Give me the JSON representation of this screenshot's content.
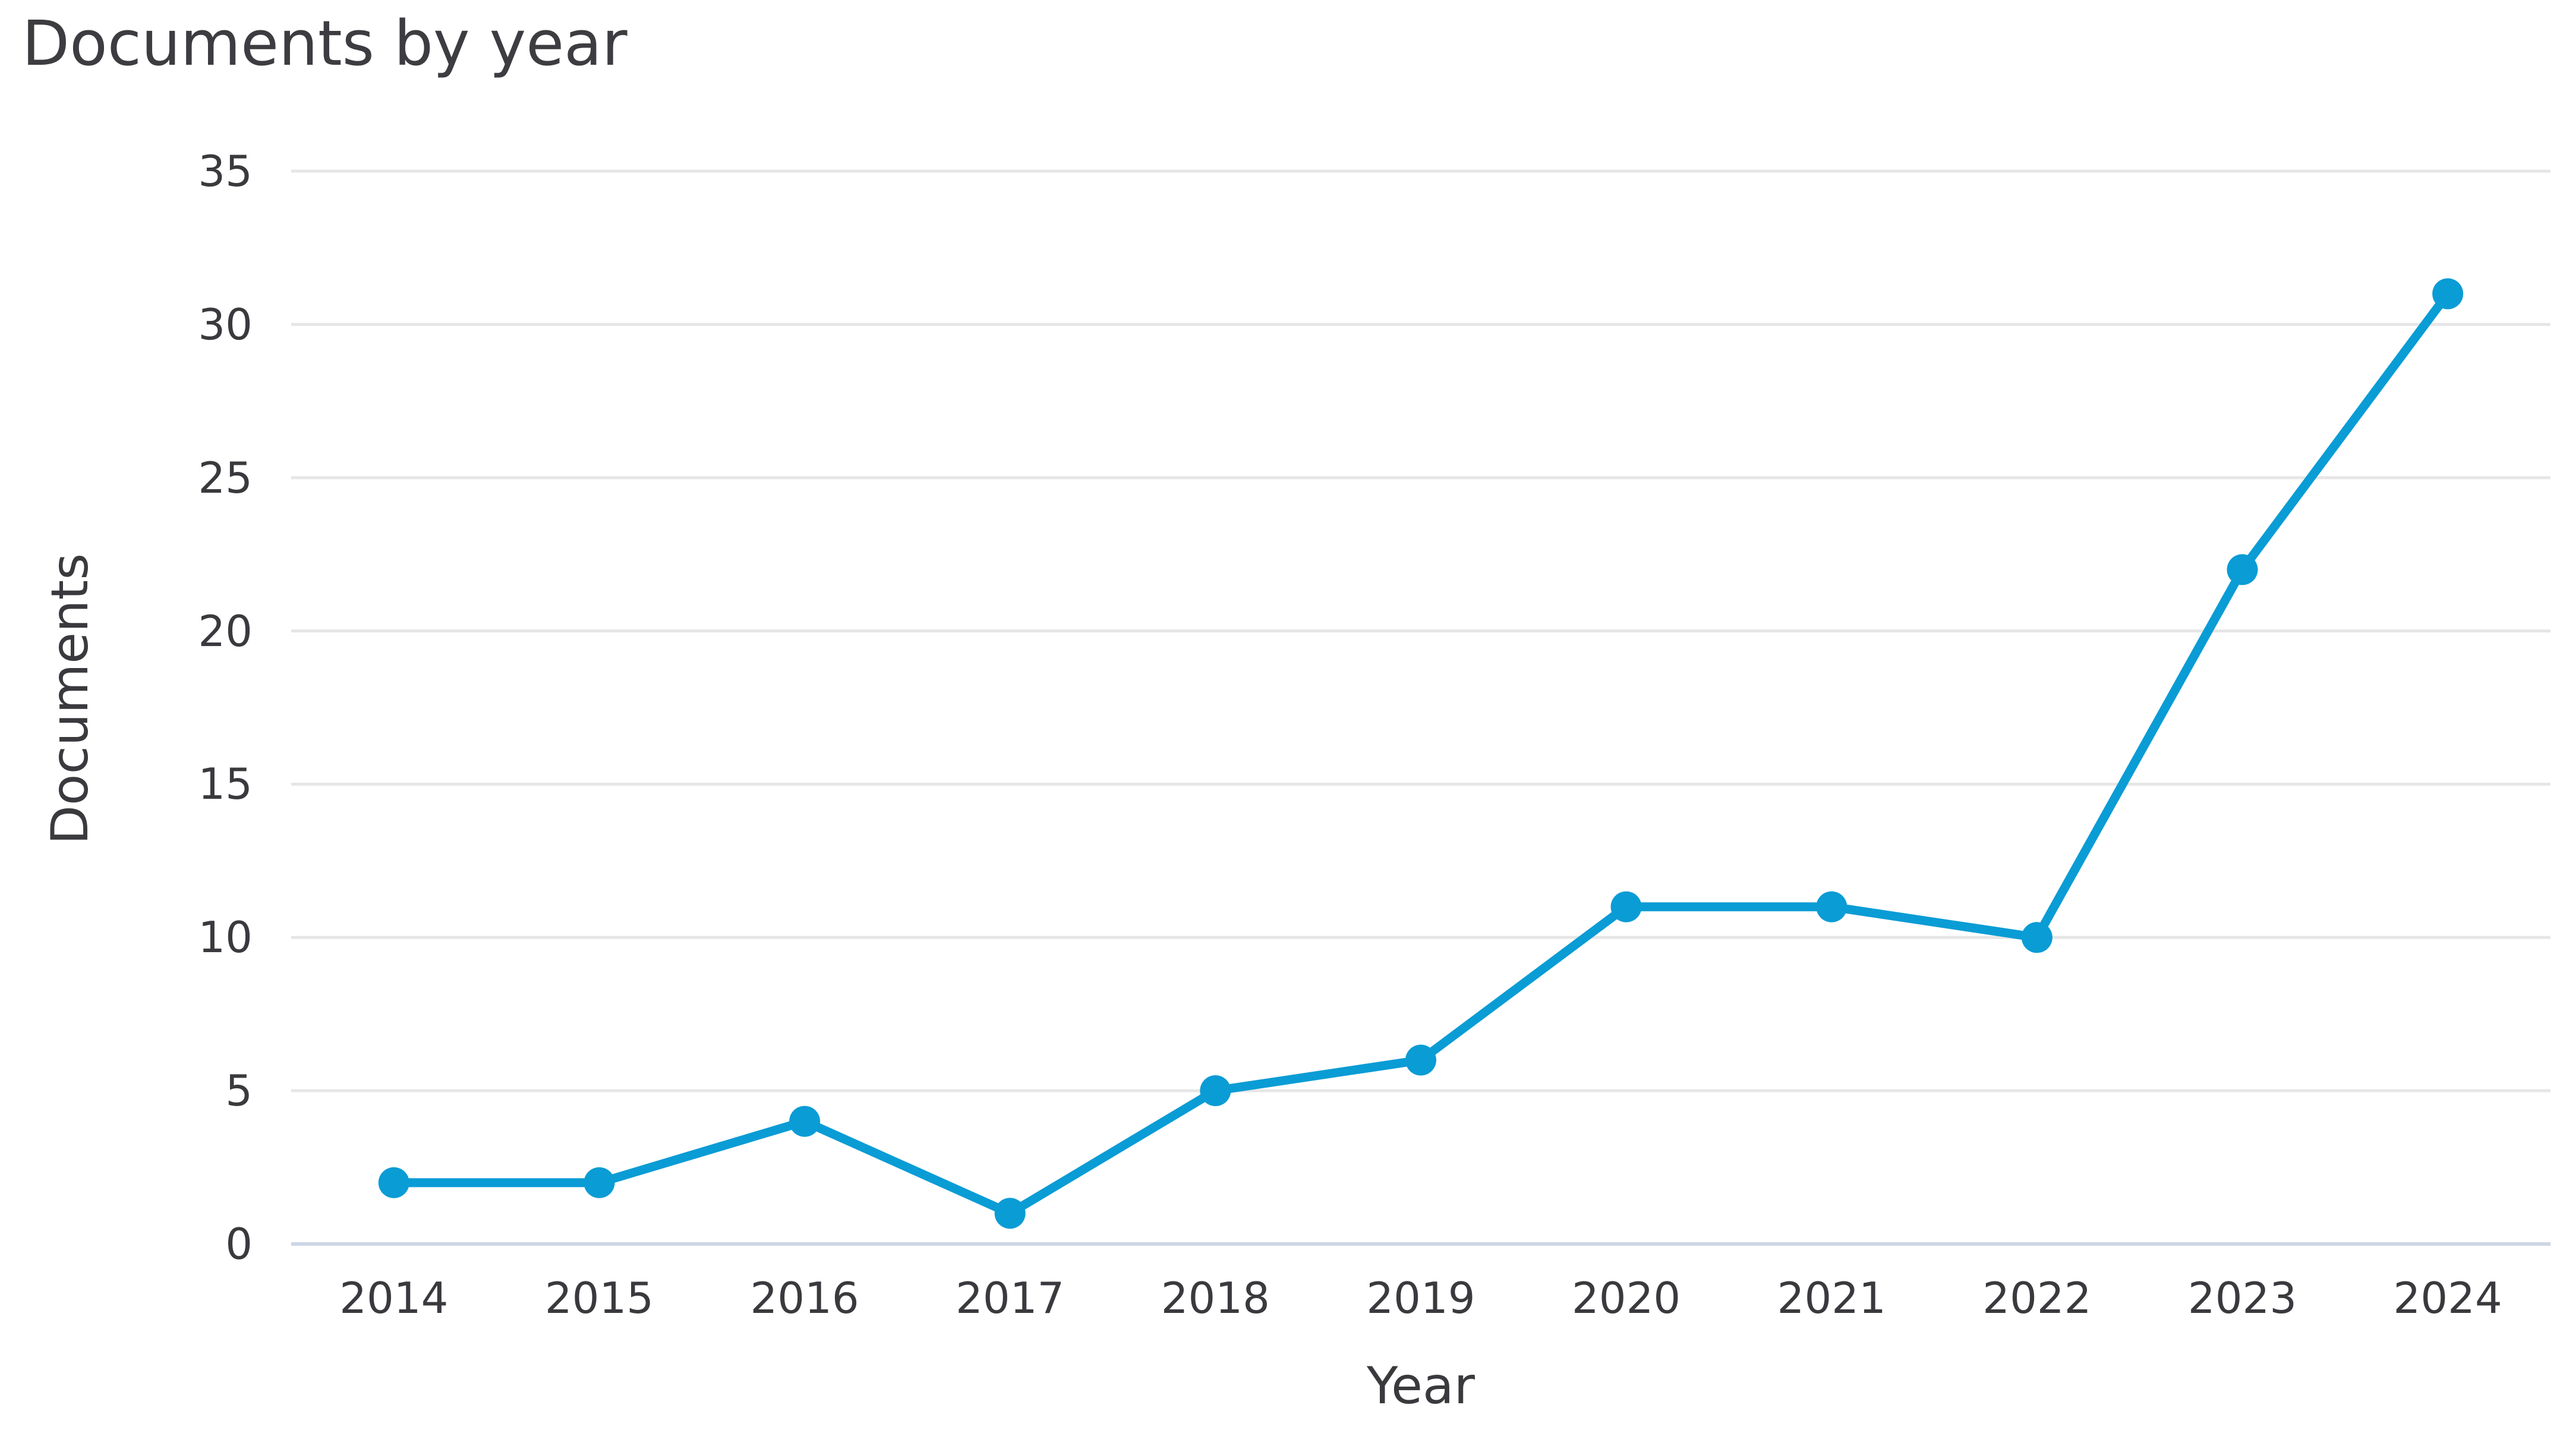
{
  "chart": {
    "title": "Documents by year",
    "x_axis_title": "Year",
    "y_axis_title": "Documents"
  },
  "chart_data": {
    "type": "line",
    "title": "Documents by year",
    "xlabel": "Year",
    "ylabel": "Documents",
    "categories": [
      "2014",
      "2015",
      "2016",
      "2017",
      "2018",
      "2019",
      "2020",
      "2021",
      "2022",
      "2023",
      "2024"
    ],
    "series": [
      {
        "name": "Documents",
        "values": [
          2,
          2,
          4,
          1,
          5,
          6,
          11,
          11,
          10,
          22,
          31
        ]
      }
    ],
    "ylim": [
      0,
      35
    ],
    "yticks": [
      0,
      5,
      10,
      15,
      20,
      25,
      30,
      35
    ],
    "grid": "horizontal gridlines at every y tick",
    "legend": "none",
    "marker": "filled-circle",
    "colors": {
      "line": "#0a9cd5",
      "marker": "#0a9cd5",
      "gridline": "#e6e6e6",
      "zero_gridline": "#ccd6e6",
      "text": "#3a3a3e",
      "title_text": "#3d3d41",
      "background": "#ffffff"
    }
  }
}
